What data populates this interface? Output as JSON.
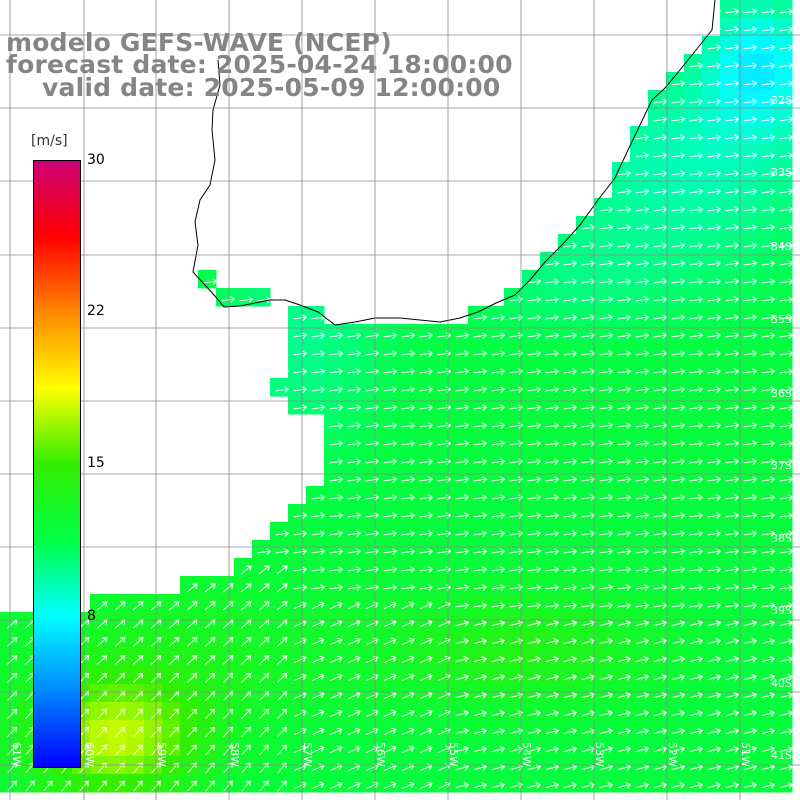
{
  "title": {
    "line1": "modelo GEFS-WAVE (NCEP)",
    "line2": "forecast date: 2025-04-24 18:00:00",
    "line3": "valid date: 2025-05-09 12:00:00"
  },
  "colorbar": {
    "units": "m/s",
    "ticks": [
      "30",
      "22",
      "15",
      "8"
    ],
    "min": 0,
    "max": 30,
    "colors": [
      "#0000ff",
      "#0088ff",
      "#00ffff",
      "#00ff44",
      "#33ee00",
      "#ffff00",
      "#ff8800",
      "#ff0000",
      "#cc0077"
    ]
  },
  "map": {
    "latitude_labels": [
      "32S",
      "33S",
      "34S",
      "35S",
      "36S",
      "37S",
      "38S",
      "39S",
      "40S",
      "41S"
    ],
    "longitude_labels": [
      "61W",
      "60W",
      "59W",
      "58W",
      "57W",
      "56W",
      "55W",
      "54W",
      "53W",
      "52W",
      "51W"
    ],
    "colors": {
      "land": "#ffffff",
      "coastline": "#000000",
      "grid": "#8a8a8a",
      "arrows": "#ffffff"
    },
    "wind_direction": "from west-southwest toward east-northeast"
  }
}
